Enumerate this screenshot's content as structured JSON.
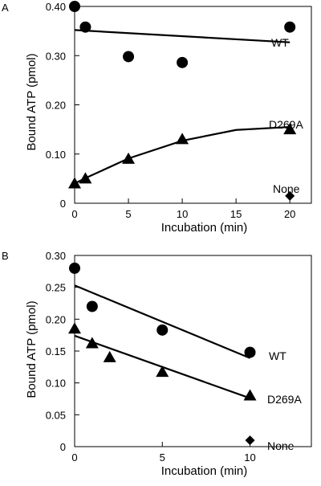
{
  "chart_data": [
    {
      "panel": "A",
      "type": "scatter",
      "xlabel": "Incubation (min)",
      "ylabel": "Bound ATP (pmol)",
      "xlim": [
        0,
        22
      ],
      "ylim": [
        0,
        0.4
      ],
      "xticks": [
        0,
        5,
        10,
        15,
        20
      ],
      "xtick_labels": [
        "0",
        "5",
        "10",
        "15",
        "20"
      ],
      "yticks": [
        0,
        0.1,
        0.2,
        0.3,
        0.4
      ],
      "ytick_labels": [
        "0",
        "0.10",
        "0.20",
        "0.30",
        "0.40"
      ],
      "series": [
        {
          "name": "WT",
          "marker": "circle",
          "points": [
            [
              0,
              0.4
            ],
            [
              1,
              0.358
            ],
            [
              5,
              0.298
            ],
            [
              10,
              0.286
            ],
            [
              20,
              0.358
            ]
          ],
          "fit": {
            "kind": "linear",
            "x": [
              0,
              20
            ],
            "y": [
              0.352,
              0.327
            ]
          }
        },
        {
          "name": "D269A",
          "marker": "triangle",
          "points": [
            [
              0,
              0.04
            ],
            [
              1,
              0.05
            ],
            [
              5,
              0.09
            ],
            [
              10,
              0.13
            ],
            [
              20,
              0.15
            ]
          ],
          "fit": {
            "kind": "curve",
            "x": [
              0,
              1,
              5,
              10,
              15,
              20
            ],
            "y": [
              0.04,
              0.051,
              0.091,
              0.127,
              0.149,
              0.155
            ]
          }
        },
        {
          "name": "None",
          "marker": "diamond",
          "points": [
            [
              20,
              0.015
            ]
          ]
        }
      ]
    },
    {
      "panel": "B",
      "type": "scatter",
      "xlabel": "Incubation (min)",
      "ylabel": "Bound ATP (pmol)",
      "xlim": [
        0,
        13.5
      ],
      "ylim": [
        0,
        0.3
      ],
      "xticks": [
        0,
        5,
        10
      ],
      "xtick_labels": [
        "0",
        "5",
        "10"
      ],
      "yticks": [
        0,
        0.05,
        0.1,
        0.15,
        0.2,
        0.25,
        0.3
      ],
      "ytick_labels": [
        "0",
        "0.05",
        "0.10",
        "0.15",
        "0.20",
        "0.25",
        "0.30"
      ],
      "series": [
        {
          "name": "WT",
          "marker": "circle",
          "points": [
            [
              0,
              0.28
            ],
            [
              1,
              0.22
            ],
            [
              5,
              0.183
            ],
            [
              10,
              0.148
            ]
          ],
          "fit": {
            "kind": "linear",
            "x": [
              0,
              10
            ],
            "y": [
              0.253,
              0.139
            ]
          }
        },
        {
          "name": "D269A",
          "marker": "triangle",
          "points": [
            [
              0,
              0.185
            ],
            [
              1,
              0.162
            ],
            [
              2,
              0.14
            ],
            [
              5,
              0.117
            ],
            [
              10,
              0.08
            ]
          ],
          "fit": {
            "kind": "linear",
            "x": [
              0,
              10
            ],
            "y": [
              0.174,
              0.076
            ]
          }
        },
        {
          "name": "None",
          "marker": "diamond",
          "points": [
            [
              10,
              0.01
            ]
          ]
        }
      ]
    }
  ]
}
